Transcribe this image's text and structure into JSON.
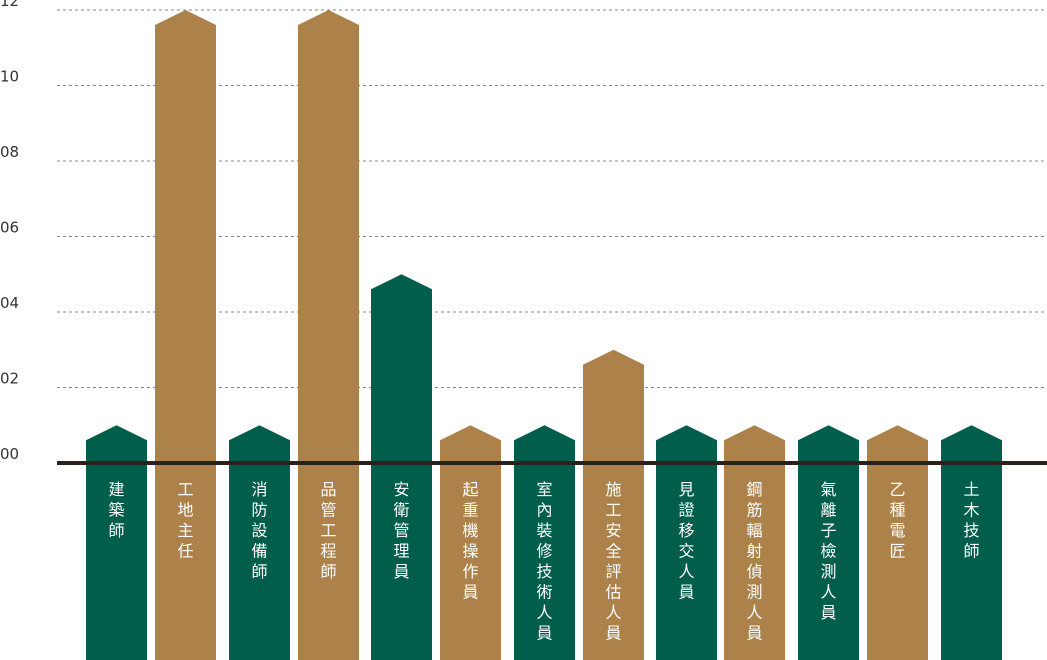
{
  "chart_data": {
    "type": "bar",
    "y_tick_labels": [
      "00",
      "02",
      "04",
      "06",
      "08",
      "10",
      "12"
    ],
    "y_ticks": [
      0,
      2,
      4,
      6,
      8,
      10,
      12
    ],
    "ylim": [
      0,
      12
    ],
    "grid": true,
    "categories": [
      "建築師",
      "工地主任",
      "消防設備師",
      "品管工程師",
      "安衛管理員",
      "起重機操作員",
      "室內裝修技術人員",
      "施工安全評估人員",
      "見證移交人員",
      "鋼筋輻射偵測人員",
      "氣離子檢測人員",
      "乙種電匠",
      "土木技師"
    ],
    "values": [
      1,
      12,
      1,
      12,
      5,
      1,
      1,
      3,
      1,
      1,
      1,
      1,
      1
    ],
    "colors": {
      "green": "#005e4a",
      "gold": "#ac824a",
      "baseline": "#2b211c",
      "grid": "#888888"
    },
    "bar_color_keys": [
      "green",
      "gold",
      "green",
      "gold",
      "green",
      "gold",
      "green",
      "gold",
      "green",
      "gold",
      "green",
      "gold",
      "green"
    ]
  }
}
